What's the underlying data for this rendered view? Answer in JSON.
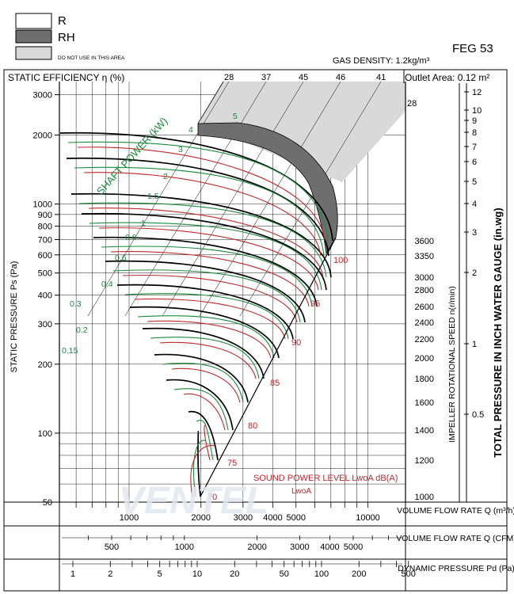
{
  "legend": {
    "items": [
      {
        "label": "R",
        "fill": "#ffffff"
      },
      {
        "label": "RH",
        "fill": "#6e6e6e"
      },
      {
        "label": "DO NOT USE IN THIS AREA",
        "fill": "#d9d9d9"
      }
    ]
  },
  "header": {
    "model": "FEG 53",
    "gas_density": "GAS DENSITY: 1.2kg/m³",
    "static_efficiency_label": "STATIC EFFICIENCY η (%)",
    "outlet_area": "Outlet Area: 0.12 m²"
  },
  "watermark": "VENTEL",
  "colors": {
    "speed_curves": "#000000",
    "power_curves": "#1a8a3c",
    "sound_curves": "#c0282d",
    "forbidden_area": "#d9d9d9",
    "rh_area": "#6e6e6e",
    "power_title": "#1a8a3c",
    "sound_title": "#c0282d"
  },
  "chart_data": {
    "type": "line",
    "title": "",
    "ylabel": "STATIC PRESSURE Ps (Pa)",
    "y_scale": "log",
    "ylim": [
      50,
      3200
    ],
    "y_ticks": [
      50,
      100,
      200,
      300,
      400,
      500,
      600,
      700,
      800,
      900,
      1000,
      2000,
      3000
    ],
    "xlabel_flow_m3h": "VOLUME FLOW RATE Q (m³/h)",
    "x_ticks_flow_m3h": [
      1000,
      2000,
      3000,
      4000,
      5000,
      10000
    ],
    "xlabel_flow_cfm": "VOLUME FLOW RATE Q (CFM)",
    "x_ticks_flow_cfm": [
      500,
      1000,
      2000,
      3000,
      4000,
      5000
    ],
    "xlabel_dynamic_pressure": "DYNAMIC PRESSURE Pd (Pa)",
    "x_ticks_dynamic_pressure": [
      1,
      2,
      5,
      10,
      20,
      50,
      100,
      200,
      500
    ],
    "right_axis_speed_label": "IMPELLER ROTATIONAL SPEED n(r/min)",
    "speed_values": [
      1000,
      1200,
      1400,
      1600,
      1800,
      2000,
      2200,
      2400,
      2600,
      2800,
      3000,
      3350,
      3600
    ],
    "right_axis_inwg_label": "TOTAL PRESSURE IN INCH WATER GAUGE (in.wg)",
    "inwg_ticks": [
      "12",
      "10",
      "9",
      "8",
      "7",
      "6",
      "5",
      "4",
      "3",
      "2",
      "1",
      "0.5"
    ],
    "efficiency_ticks": [
      "28",
      "37",
      "45",
      "46",
      "41",
      "28"
    ],
    "shaft_power_title": "SHAFT POWER (kW)",
    "shaft_power_values": [
      "0.15",
      "0.2",
      "0.3",
      "0.4",
      "0.6",
      "0.8",
      "1",
      "1.5",
      "2",
      "3",
      "4",
      "5"
    ],
    "sound_title": "SOUND POWER LEVEL LwoA dB(A)",
    "sound_subtitle": "LwoA",
    "sound_values": [
      "70",
      "75",
      "80",
      "85",
      "90",
      "95",
      "100"
    ]
  }
}
